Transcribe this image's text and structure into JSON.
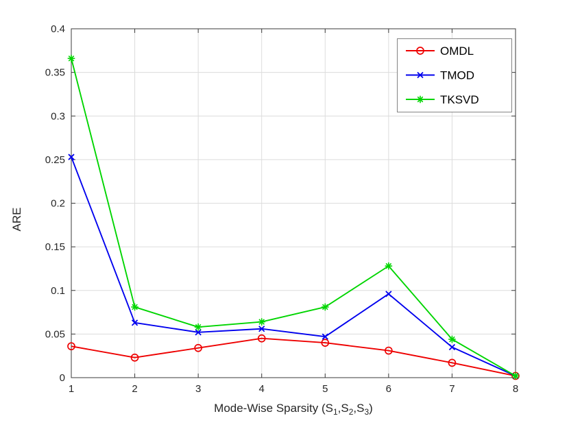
{
  "chart_data": {
    "type": "line",
    "x": [
      1,
      2,
      3,
      4,
      5,
      6,
      7,
      8
    ],
    "series": [
      {
        "name": "OMDL",
        "color": "#ee0000",
        "marker": "circle",
        "values": [
          0.036,
          0.023,
          0.034,
          0.045,
          0.04,
          0.031,
          0.017,
          0.002
        ]
      },
      {
        "name": "TMOD",
        "color": "#0000ee",
        "marker": "x",
        "values": [
          0.253,
          0.063,
          0.052,
          0.056,
          0.047,
          0.096,
          0.035,
          0.002
        ]
      },
      {
        "name": "TKSVD",
        "color": "#00d500",
        "marker": "asterisk",
        "values": [
          0.366,
          0.081,
          0.058,
          0.064,
          0.081,
          0.128,
          0.044,
          0.002
        ]
      }
    ],
    "title": "",
    "xlabel": "Mode-Wise Sparsity (S1,S2,S3)",
    "xlabel_parts": [
      {
        "text": "Mode-Wise Sparsity (S",
        "sub": false
      },
      {
        "text": "1",
        "sub": true
      },
      {
        "text": ",S",
        "sub": false
      },
      {
        "text": "2",
        "sub": true
      },
      {
        "text": ",S",
        "sub": false
      },
      {
        "text": "3",
        "sub": true
      },
      {
        "text": ")",
        "sub": false
      }
    ],
    "ylabel": "ARE",
    "xlim": [
      1,
      8
    ],
    "ylim": [
      0,
      0.4
    ],
    "xticks": [
      1,
      2,
      3,
      4,
      5,
      6,
      7,
      8
    ],
    "yticks": [
      0,
      0.05,
      0.1,
      0.15,
      0.2,
      0.25,
      0.3,
      0.35,
      0.4
    ],
    "grid": true,
    "legend_position": "top-right",
    "legend_entries": [
      "OMDL",
      "TMOD",
      "TKSVD"
    ],
    "colors": {
      "grid": "#dcdcdc",
      "axis": "#3a3a3a",
      "tick_label": "#262626",
      "axis_label": "#262626",
      "legend_border": "#838383",
      "legend_text": "#000000",
      "background": "#ffffff"
    }
  }
}
